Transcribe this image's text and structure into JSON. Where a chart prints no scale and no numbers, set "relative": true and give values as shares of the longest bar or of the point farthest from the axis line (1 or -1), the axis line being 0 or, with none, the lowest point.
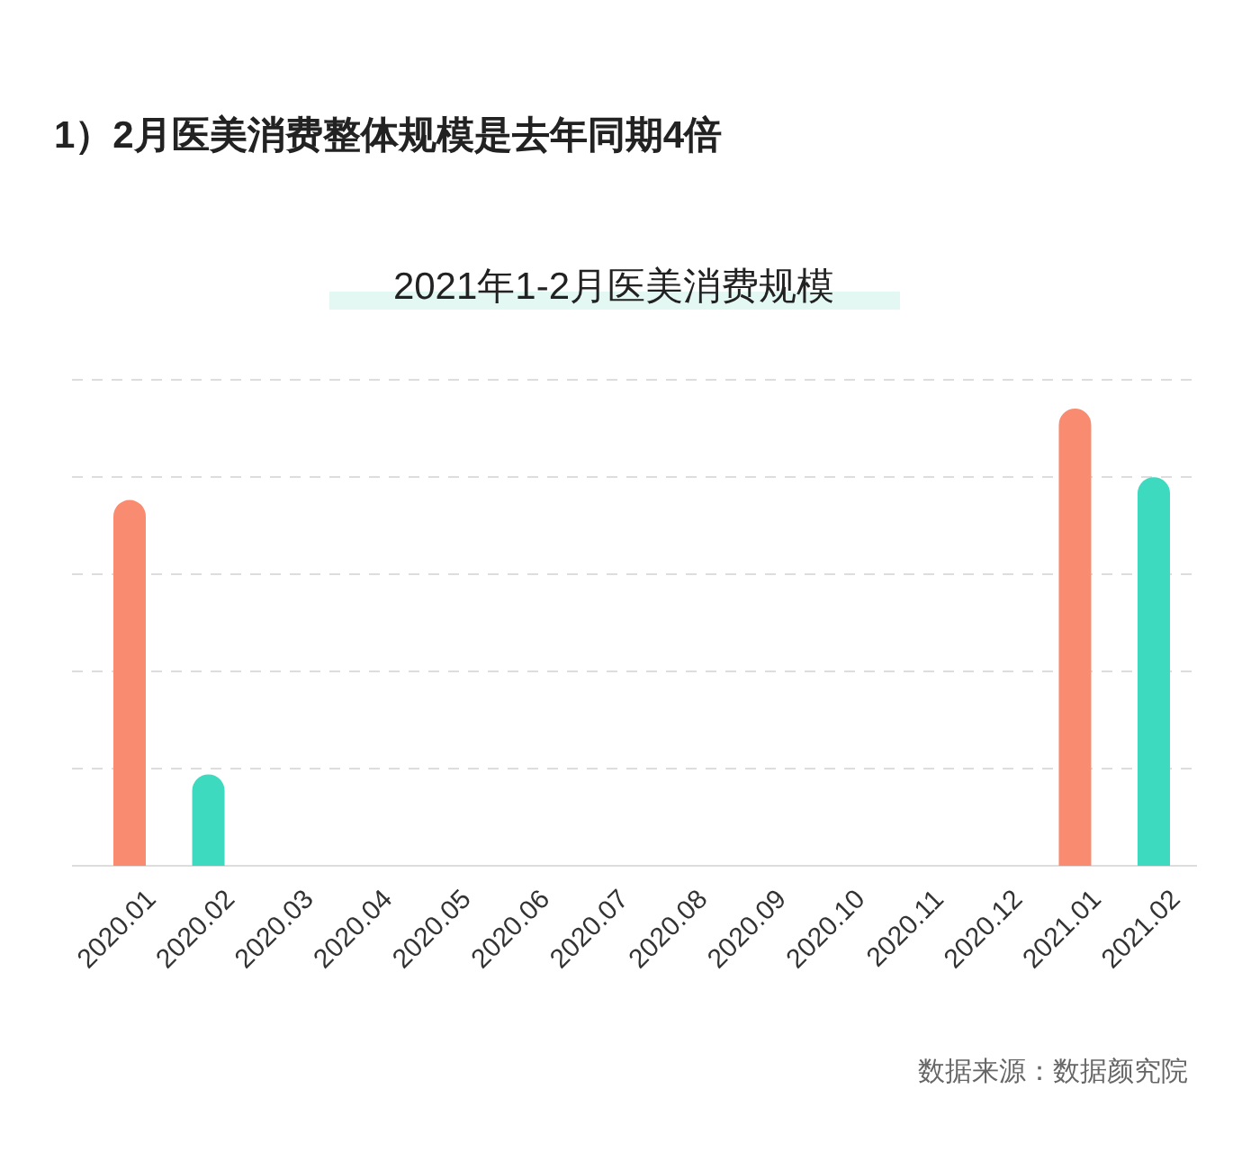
{
  "chart_data": {
    "type": "bar",
    "title": "2021年1-2月医美消费规模",
    "categories": [
      "2020.01",
      "2020.02",
      "2020.03",
      "2020.04",
      "2020.05",
      "2020.06",
      "2020.07",
      "2020.08",
      "2020.09",
      "2020.10",
      "2020.11",
      "2020.12",
      "2021.01",
      "2021.02"
    ],
    "values": [
      0.8,
      0.2,
      null,
      null,
      null,
      null,
      null,
      null,
      null,
      null,
      null,
      null,
      1,
      0.85
    ],
    "colors": [
      "#f98b70",
      "#3ddac0",
      null,
      null,
      null,
      null,
      null,
      null,
      null,
      null,
      null,
      null,
      "#f98b70",
      "#3ddac0"
    ],
    "relative": true,
    "grid": true,
    "annotations": [
      "1）2月医美消费整体规模是去年同期4倍",
      "数据来源：数据颜究院"
    ]
  }
}
